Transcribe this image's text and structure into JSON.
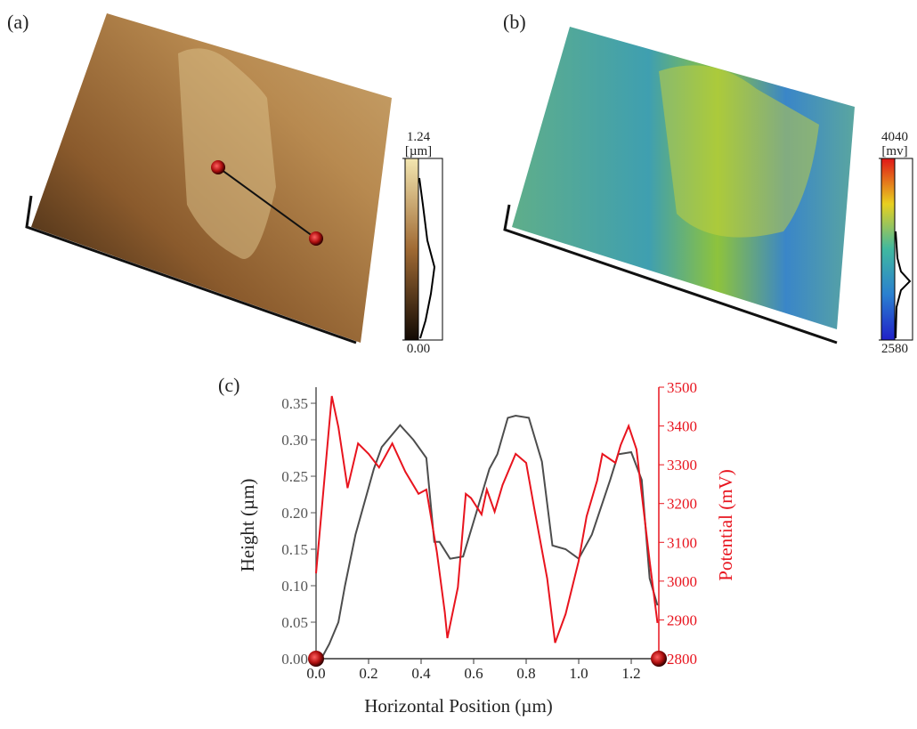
{
  "panels": [
    {
      "label": "(a)",
      "colorbar": {
        "max": 1.24,
        "unit": "[µm]",
        "min": {
          "value": 0,
          "label": "0.00"
        }
      }
    },
    {
      "label": "(b)",
      "colorbar": {
        "max": 4040,
        "unit": "[mv]",
        "min": 2580
      }
    }
  ],
  "chart_data": {
    "type": "line",
    "label": "(c)",
    "x_label": "Horizontal Position (µm)",
    "y_label": "Height (µm)",
    "y2_label": "Potential (mV)",
    "xlim": [
      0,
      1.305
    ],
    "ylim": [
      0,
      0.372
    ],
    "y2lim": [
      2800,
      3500
    ],
    "xticks": [
      {
        "value": 0,
        "label": "0.0"
      },
      0.2,
      0.4,
      0.6,
      0.8,
      {
        "value": 1,
        "label": "1.0"
      },
      1.2
    ],
    "yticks": [
      {
        "value": 0,
        "label": "0.00"
      },
      0.05,
      {
        "value": 0.1,
        "label": "0.10"
      },
      0.15,
      {
        "value": 0.2,
        "label": "0.20"
      },
      0.25,
      {
        "value": 0.3,
        "label": "0.30"
      },
      0.35
    ],
    "y2ticks": [
      2800,
      2900,
      3000,
      3100,
      3200,
      3300,
      3400,
      3500
    ],
    "series": [
      {
        "color": "#4d4d4d",
        "x": [
          0,
          0.02,
          0.05,
          0.085,
          0.11,
          0.15,
          0.22,
          0.25,
          0.32,
          0.37,
          0.42,
          0.45,
          0.47,
          0.51,
          0.56,
          0.61,
          0.66,
          0.69,
          0.73,
          0.76,
          0.81,
          0.86,
          0.9,
          0.95,
          1.0,
          1.05,
          1.12,
          1.15,
          1.2,
          1.24,
          1.27,
          1.3
        ],
        "values": [
          0,
          0,
          0.02,
          0.05,
          0.1,
          0.17,
          0.26,
          0.29,
          0.32,
          0.3,
          0.275,
          0.16,
          0.16,
          0.137,
          0.14,
          0.2,
          0.26,
          0.28,
          0.33,
          0.333,
          0.33,
          0.27,
          0.155,
          0.15,
          0.137,
          0.17,
          0.245,
          0.28,
          0.283,
          0.245,
          0.11,
          0.073
        ]
      },
      {
        "color": "#e8141e",
        "axis": "y2",
        "x": [
          0,
          0.06,
          0.085,
          0.12,
          0.16,
          0.2,
          0.24,
          0.29,
          0.34,
          0.39,
          0.42,
          0.46,
          0.49,
          0.5,
          0.54,
          0.57,
          0.59,
          0.63,
          0.65,
          0.68,
          0.71,
          0.76,
          0.8,
          0.83,
          0.88,
          0.91,
          0.95,
          1.0,
          1.03,
          1.07,
          1.09,
          1.14,
          1.16,
          1.19,
          1.22,
          1.27,
          1.3
        ],
        "values": [
          3020,
          3477,
          3397,
          3240,
          3355,
          3328,
          3293,
          3355,
          3282,
          3225,
          3236,
          3075,
          2920,
          2853,
          2984,
          3225,
          3214,
          3172,
          3236,
          3179,
          3248,
          3328,
          3305,
          3190,
          3007,
          2841,
          2915,
          3052,
          3167,
          3259,
          3328,
          3305,
          3351,
          3400,
          3340,
          3052,
          2892
        ]
      }
    ]
  }
}
